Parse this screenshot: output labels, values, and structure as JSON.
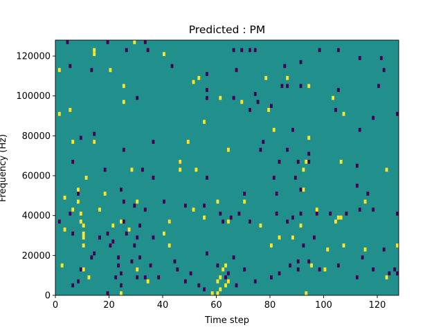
{
  "chart_data": {
    "type": "heatmap",
    "title": "Predicted : PM",
    "xlabel": "Time step",
    "ylabel": "Frequency (Hz)",
    "xlim": [
      0,
      128
    ],
    "ylim": [
      0,
      128000
    ],
    "x_ticks": [
      "0",
      "20",
      "40",
      "60",
      "80",
      "100",
      "120"
    ],
    "x_tick_values": [
      0,
      20,
      40,
      60,
      80,
      100,
      120
    ],
    "y_ticks": [
      "0",
      "20000",
      "40000",
      "60000",
      "80000",
      "100000",
      "120000"
    ],
    "y_tick_values": [
      0,
      20000,
      40000,
      60000,
      80000,
      100000,
      120000
    ],
    "grid": false,
    "cell_width": 1,
    "cell_height": 2000,
    "colors": {
      "background": "#21908d",
      "high": "#fde725",
      "low": "#440154"
    },
    "high_cells": [
      [
        14,
        120000
      ],
      [
        14,
        122000
      ],
      [
        29,
        126000
      ],
      [
        40,
        120000
      ],
      [
        1,
        112000
      ],
      [
        20,
        112000
      ],
      [
        53,
        108000
      ],
      [
        78,
        108000
      ],
      [
        86,
        108000
      ],
      [
        25,
        104000
      ],
      [
        51,
        106000
      ],
      [
        94,
        104000
      ],
      [
        25,
        96000
      ],
      [
        61,
        98000
      ],
      [
        69,
        96000
      ],
      [
        103,
        98000
      ],
      [
        5,
        92000
      ],
      [
        79,
        92000
      ],
      [
        1,
        90000
      ],
      [
        107,
        90000
      ],
      [
        55,
        86000
      ],
      [
        81,
        82000
      ],
      [
        94,
        78000
      ],
      [
        6,
        76000
      ],
      [
        14,
        76000
      ],
      [
        49,
        76000
      ],
      [
        64,
        72000
      ],
      [
        46,
        66000
      ],
      [
        93,
        66000
      ],
      [
        28,
        62000
      ],
      [
        46,
        62000
      ],
      [
        52,
        62000
      ],
      [
        92,
        62000
      ],
      [
        106,
        66000
      ],
      [
        123,
        62000
      ],
      [
        11,
        58000
      ],
      [
        8,
        52000
      ],
      [
        18,
        50000
      ],
      [
        92,
        52000
      ],
      [
        3,
        48000
      ],
      [
        8,
        46000
      ],
      [
        30,
        46000
      ],
      [
        60,
        46000
      ],
      [
        70,
        46000
      ],
      [
        115,
        46000
      ],
      [
        6,
        42000
      ],
      [
        16,
        42000
      ],
      [
        51,
        42000
      ],
      [
        97,
        42000
      ],
      [
        9,
        40000
      ],
      [
        9,
        36000
      ],
      [
        24,
        36000
      ],
      [
        42,
        36000
      ],
      [
        55,
        38000
      ],
      [
        64,
        36000
      ],
      [
        76,
        34000
      ],
      [
        91,
        34000
      ],
      [
        104,
        36000
      ],
      [
        105,
        38000
      ],
      [
        106,
        38000
      ],
      [
        10,
        34000
      ],
      [
        21,
        34000
      ],
      [
        10,
        30000
      ],
      [
        27,
        32000
      ],
      [
        3,
        32000
      ],
      [
        40,
        30000
      ],
      [
        83,
        28000
      ],
      [
        10,
        28000
      ],
      [
        10,
        24000
      ],
      [
        42,
        24000
      ],
      [
        88,
        28000
      ],
      [
        115,
        22000
      ],
      [
        127,
        24000
      ],
      [
        2,
        14000
      ],
      [
        80,
        24000
      ],
      [
        101,
        22000
      ],
      [
        107,
        24000
      ],
      [
        10,
        12000
      ],
      [
        12,
        8000
      ],
      [
        30,
        12000
      ],
      [
        60,
        6000
      ],
      [
        61,
        8000
      ],
      [
        62,
        12000
      ],
      [
        63,
        14000
      ],
      [
        60,
        0
      ],
      [
        61,
        2000
      ],
      [
        63,
        4000
      ],
      [
        64,
        6000
      ],
      [
        93,
        0
      ],
      [
        24,
        0
      ],
      [
        34,
        6000
      ],
      [
        100,
        12000
      ],
      [
        95,
        14000
      ],
      [
        123,
        8000
      ],
      [
        58,
        0
      ]
    ],
    "low_cells": [
      [
        4,
        126000
      ],
      [
        19,
        126000
      ],
      [
        33,
        126000
      ],
      [
        34,
        122000
      ],
      [
        26,
        122000
      ],
      [
        5,
        114000
      ],
      [
        13,
        112000
      ],
      [
        43,
        114000
      ],
      [
        56,
        110000
      ],
      [
        66,
        122000
      ],
      [
        69,
        122000
      ],
      [
        72,
        122000
      ],
      [
        74,
        122000
      ],
      [
        67,
        112000
      ],
      [
        85,
        114000
      ],
      [
        91,
        116000
      ],
      [
        98,
        122000
      ],
      [
        105,
        122000
      ],
      [
        113,
        118000
      ],
      [
        121,
        118000
      ],
      [
        122,
        112000
      ],
      [
        120,
        104000
      ],
      [
        105,
        102000
      ],
      [
        84,
        104000
      ],
      [
        86,
        104000
      ],
      [
        91,
        104000
      ],
      [
        56,
        102000
      ],
      [
        56,
        98000
      ],
      [
        66,
        98000
      ],
      [
        74,
        100000
      ],
      [
        75,
        96000
      ],
      [
        30,
        98000
      ],
      [
        72,
        92000
      ],
      [
        80,
        94000
      ],
      [
        104,
        92000
      ],
      [
        113,
        82000
      ],
      [
        127,
        90000
      ],
      [
        118,
        88000
      ],
      [
        14,
        80000
      ],
      [
        14,
        76000
      ],
      [
        9,
        78000
      ],
      [
        36,
        76000
      ],
      [
        77,
        76000
      ],
      [
        88,
        82000
      ],
      [
        25,
        72000
      ],
      [
        46,
        66000
      ],
      [
        76,
        72000
      ],
      [
        86,
        72000
      ],
      [
        94,
        70000
      ],
      [
        90,
        66000
      ],
      [
        83,
        66000
      ],
      [
        6,
        66000
      ],
      [
        18,
        62000
      ],
      [
        32,
        62000
      ],
      [
        36,
        58000
      ],
      [
        56,
        58000
      ],
      [
        81,
        58000
      ],
      [
        89,
        58000
      ],
      [
        94,
        66000
      ],
      [
        112,
        64000
      ],
      [
        112,
        54000
      ],
      [
        116,
        50000
      ],
      [
        91,
        52000
      ],
      [
        70,
        50000
      ],
      [
        82,
        50000
      ],
      [
        48,
        44000
      ],
      [
        40,
        46000
      ],
      [
        8,
        50000
      ],
      [
        24,
        52000
      ],
      [
        25,
        46000
      ],
      [
        29,
        44000
      ],
      [
        33,
        42000
      ],
      [
        31,
        34000
      ],
      [
        42,
        36000
      ],
      [
        55,
        44000
      ],
      [
        61,
        40000
      ],
      [
        62,
        36000
      ],
      [
        65,
        38000
      ],
      [
        68,
        40000
      ],
      [
        72,
        36000
      ],
      [
        82,
        40000
      ],
      [
        86,
        36000
      ],
      [
        88,
        38000
      ],
      [
        91,
        40000
      ],
      [
        97,
        40000
      ],
      [
        102,
        40000
      ],
      [
        108,
        40000
      ],
      [
        113,
        42000
      ],
      [
        118,
        42000
      ],
      [
        127,
        40000
      ],
      [
        5,
        40000
      ],
      [
        1,
        36000
      ],
      [
        6,
        30000
      ],
      [
        16,
        28000
      ],
      [
        19,
        30000
      ],
      [
        25,
        36000
      ],
      [
        26,
        30000
      ],
      [
        30,
        28000
      ],
      [
        36,
        28000
      ],
      [
        23,
        18000
      ],
      [
        20,
        24000
      ],
      [
        21,
        26000
      ],
      [
        14,
        20000
      ],
      [
        28,
        16000
      ],
      [
        29,
        24000
      ],
      [
        33,
        8000
      ],
      [
        9,
        12000
      ],
      [
        13,
        18000
      ],
      [
        23,
        14000
      ],
      [
        22,
        8000
      ],
      [
        24,
        4000
      ],
      [
        19,
        0
      ],
      [
        30,
        8000
      ],
      [
        31,
        18000
      ],
      [
        35,
        14000
      ],
      [
        38,
        8000
      ],
      [
        44,
        16000
      ],
      [
        45,
        12000
      ],
      [
        53,
        4000
      ],
      [
        55,
        2000
      ],
      [
        48,
        6000
      ],
      [
        50,
        10000
      ],
      [
        60,
        14000
      ],
      [
        63,
        8000
      ],
      [
        64,
        10000
      ],
      [
        67,
        4000
      ],
      [
        70,
        12000
      ],
      [
        74,
        6000
      ],
      [
        80,
        8000
      ],
      [
        83,
        10000
      ],
      [
        87,
        14000
      ],
      [
        90,
        16000
      ],
      [
        90,
        12000
      ],
      [
        92,
        24000
      ],
      [
        94,
        16000
      ],
      [
        96,
        28000
      ],
      [
        105,
        14000
      ],
      [
        112,
        8000
      ],
      [
        118,
        12000
      ],
      [
        122,
        22000
      ],
      [
        124,
        10000
      ],
      [
        126,
        12000
      ],
      [
        127,
        10000
      ],
      [
        6,
        4000
      ],
      [
        8,
        6000
      ],
      [
        24,
        10000
      ],
      [
        56,
        20000
      ],
      [
        66,
        18000
      ],
      [
        98,
        12000
      ],
      [
        114,
        18000
      ]
    ]
  }
}
